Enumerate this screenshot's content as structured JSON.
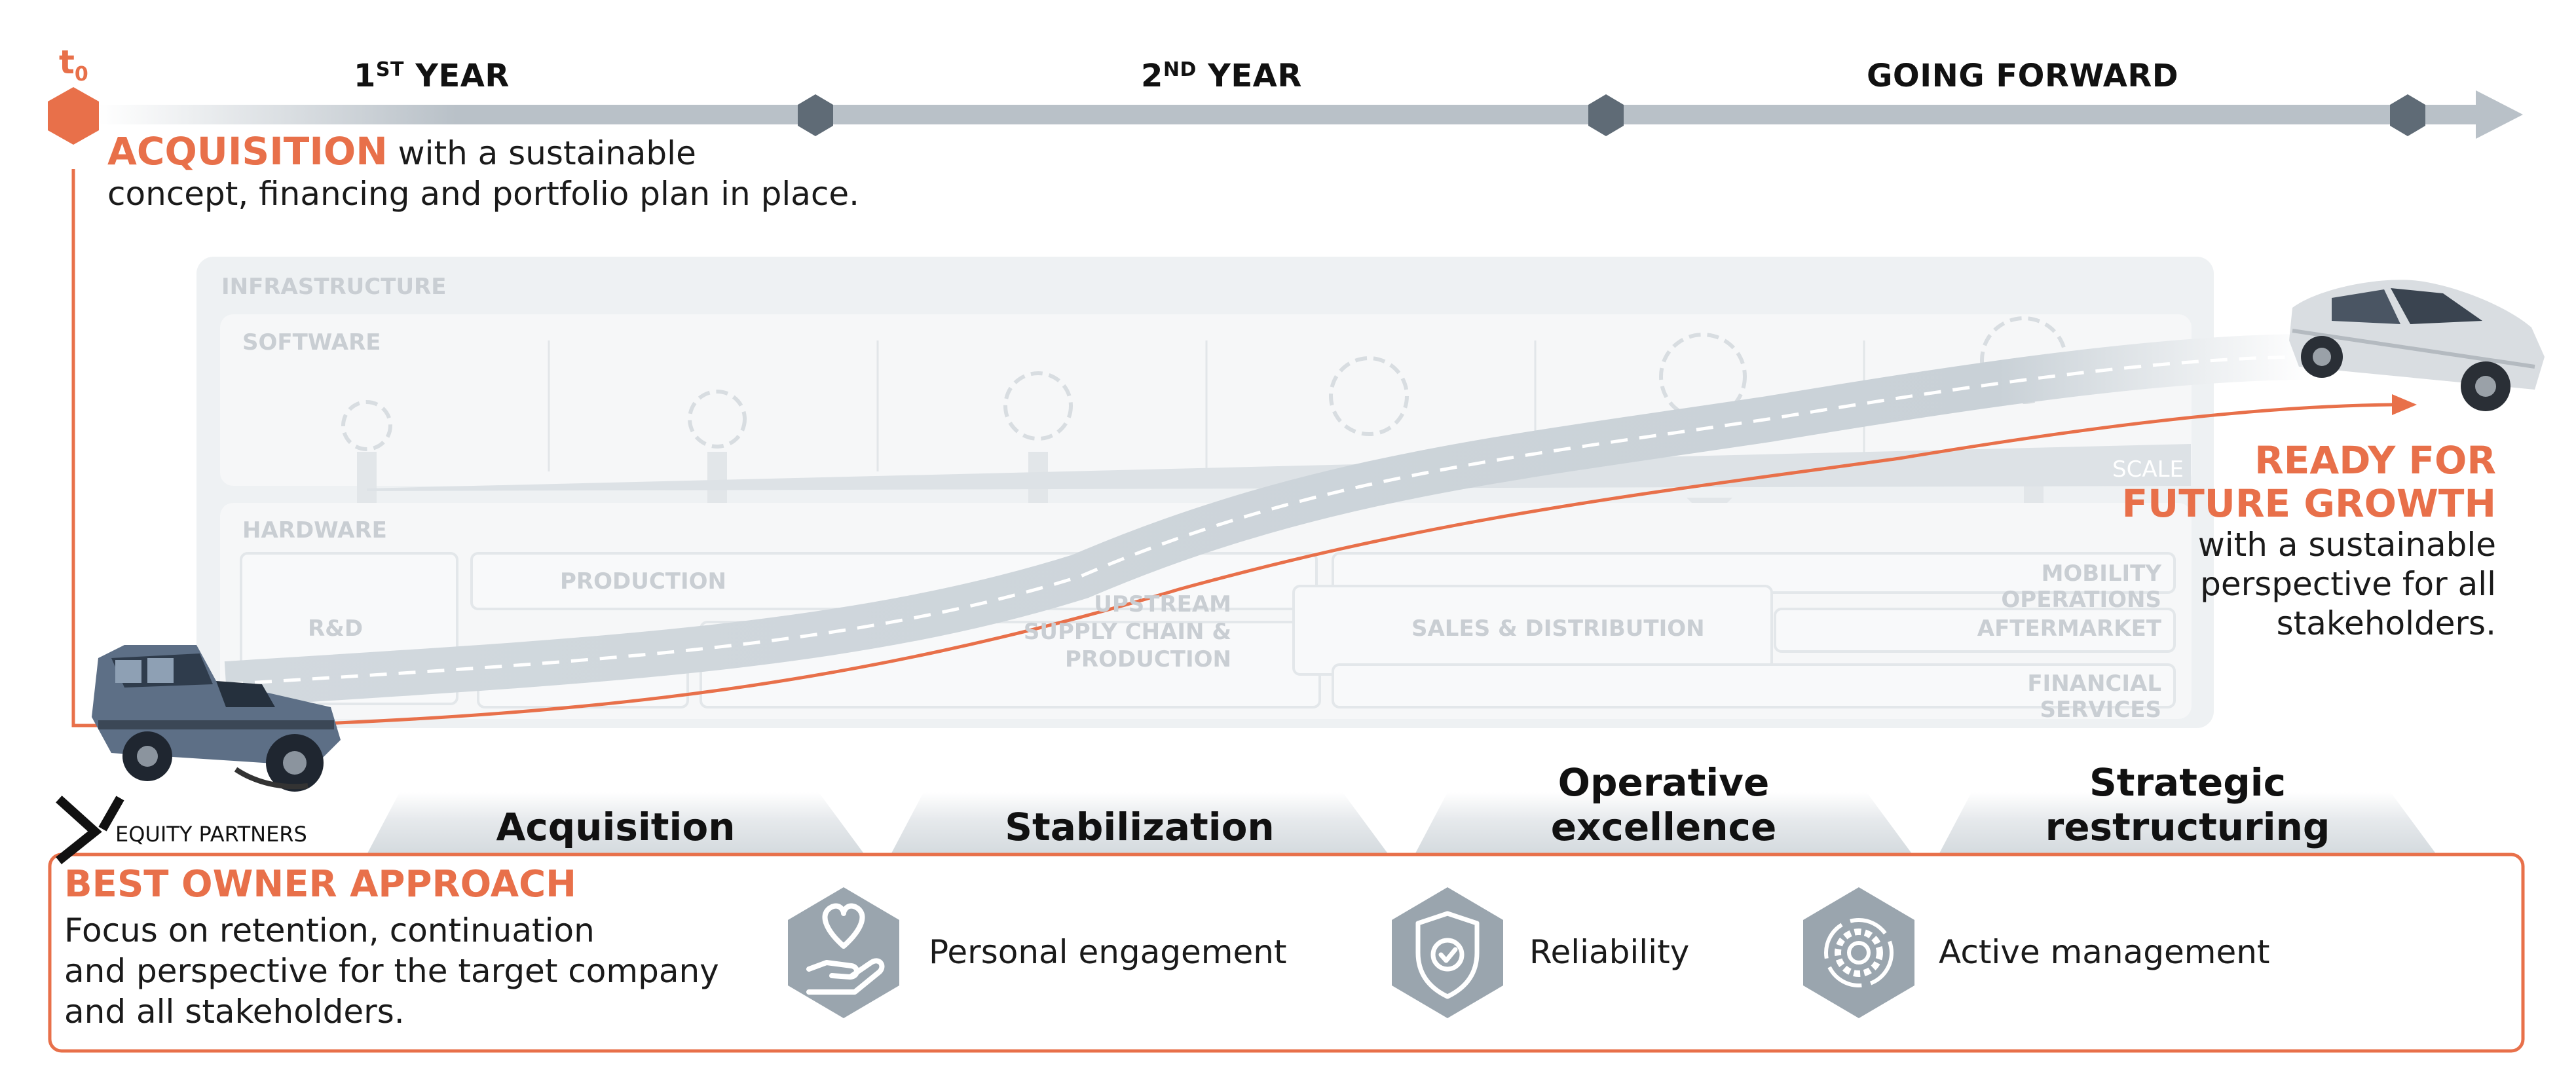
{
  "timeline": {
    "t0": {
      "main": "t",
      "sub": "0"
    },
    "years": [
      {
        "main": "1",
        "sup": "ST",
        "rest": " YEAR"
      },
      {
        "main": "2",
        "sup": "ND",
        "rest": " YEAR"
      },
      {
        "main": "GOING FORWARD",
        "sup": "",
        "rest": ""
      }
    ]
  },
  "acquisition": {
    "heading": "ACQUISITION",
    "line1": " with a sustainable",
    "line2": "concept, financing and portfolio plan in place."
  },
  "background": {
    "infrastructure": "INFRASTRUCTURE",
    "software": "SOFTWARE",
    "hardware": "HARDWARE",
    "scale": "SCALE",
    "production": "PRODUCTION",
    "rd": "R&D",
    "upstream": [
      "UPSTREAM",
      "SUPPLY CHAIN &",
      "PRODUCTION"
    ],
    "sales": "SALES & DISTRIBUTION",
    "mobility": "MOBILITY OPERATIONS",
    "aftermarket": "AFTERMARKET",
    "financial": "FINANCIAL SERVICES"
  },
  "ready": {
    "heading_line1": "READY FOR",
    "heading_line2": "FUTURE GROWTH",
    "text_line1": "with a sustainable",
    "text_line2": "perspective for all",
    "text_line3": "stakeholders."
  },
  "phases": [
    {
      "line1": "Acquisition",
      "line2": ""
    },
    {
      "line1": "Stabilization",
      "line2": ""
    },
    {
      "line1": "Operative",
      "line2": "excellence"
    },
    {
      "line1": "Strategic",
      "line2": "restructuring"
    }
  ],
  "logo": {
    "text": "EQUITY PARTNERS"
  },
  "approach": {
    "heading": "BEST OWNER APPROACH",
    "line1": "Focus on retention, continuation",
    "line2": "and perspective for the target company",
    "line3": "and all stakeholders."
  },
  "features": [
    {
      "label": "Personal engagement",
      "icon": "heart-hand-icon"
    },
    {
      "label": "Reliability",
      "icon": "shield-check-icon"
    },
    {
      "label": "Active management",
      "icon": "gear-cycle-icon"
    }
  ],
  "colors": {
    "accent": "#e8704a",
    "timeline": "#b9c1c8",
    "marker": "#5f6b76",
    "icon_bg": "#9aa5ae",
    "road": "#ccd4da",
    "background_panel": "#eef1f3"
  }
}
